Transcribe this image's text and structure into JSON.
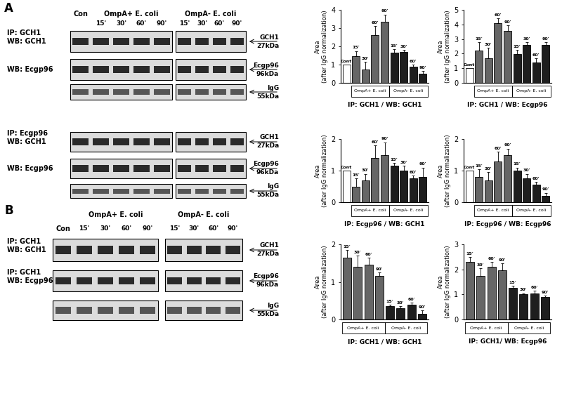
{
  "panels": [
    "A",
    "B"
  ],
  "blots": [
    {
      "panel": "A",
      "control": "Con",
      "groups": [
        "OmpA+ E. coli",
        "OmpA- E. coli"
      ],
      "lanes": [
        "15'",
        "30'",
        "60'",
        "90'"
      ],
      "rows": [
        {
          "left": [
            "IP: GCH1",
            "WB: GCH1"
          ],
          "band": "GCH1",
          "size": "27kDa"
        },
        {
          "left": [
            "WB: Ecgp96"
          ],
          "band": "Ecgp96",
          "size": "96kDa"
        },
        {
          "left": [],
          "band": "IgG",
          "size": "55kDa"
        }
      ]
    },
    {
      "rows": [
        {
          "left": [
            "IP: Ecgp96",
            "WB: GCH1"
          ],
          "band": "GCH1",
          "size": "27kDa"
        },
        {
          "left": [
            "WB: Ecgp96"
          ],
          "band": "Ecgp96",
          "size": "96kDa"
        },
        {
          "left": [],
          "band": "IgG",
          "size": "55kDa"
        }
      ]
    },
    {
      "panel": "B",
      "control": "Con",
      "groups": [
        "OmpA+ E. coli",
        "OmpA- E. coli"
      ],
      "lanes": [
        "15'",
        "30'",
        "60'",
        "90'"
      ],
      "rows": [
        {
          "left": [
            "IP: GCH1",
            "WB: GCH1"
          ],
          "band": "GCH1",
          "size": "27kDa"
        },
        {
          "left": [
            "IP: GCH1",
            "WB: Ecgp96"
          ],
          "band": "Ecgp96",
          "size": "96kDa"
        },
        {
          "left": [],
          "band": "IgG",
          "size": "55kDa"
        }
      ]
    }
  ],
  "chart_data": [
    {
      "type": "bar",
      "xlabel": "IP: GCH1 / WB: GCH1",
      "ylabel": "Area\n(after IgG normalization)",
      "ylim": [
        0,
        4
      ],
      "yticks": [
        0,
        1,
        2,
        3,
        4
      ],
      "tick_labels": "y",
      "series": [
        {
          "categories": [
            "Cont"
          ],
          "values": [
            1.0
          ],
          "color": "#ffffff"
        },
        {
          "name": "OmpA+ E. coli",
          "categories": [
            "15'",
            "30'",
            "60'",
            "90'"
          ],
          "values": [
            1.45,
            0.75,
            2.6,
            3.35
          ],
          "errors": [
            0.3,
            0.4,
            0.5,
            0.4
          ],
          "color": "#666666"
        },
        {
          "name": "OmpA- E. coli",
          "categories": [
            "15'",
            "30'",
            "60'",
            "90'"
          ],
          "values": [
            1.65,
            1.7,
            0.9,
            0.5
          ],
          "errors": [
            0.2,
            0.1,
            0.1,
            0.15
          ],
          "color": "#1e1e1e"
        }
      ]
    },
    {
      "type": "bar",
      "xlabel": "IP: GCH1 / WB: Ecgp96",
      "ylabel": "Area\n(after IgG normalization)",
      "ylim": [
        0,
        5
      ],
      "yticks": [
        0,
        1,
        2,
        3,
        4,
        5
      ],
      "tick_labels": "y",
      "series": [
        {
          "categories": [
            "Cont"
          ],
          "values": [
            1.0
          ],
          "color": "#ffffff"
        },
        {
          "name": "OmpA+ E. coli",
          "categories": [
            "15'",
            "30'",
            "60'",
            "90'"
          ],
          "values": [
            2.2,
            1.7,
            4.1,
            3.55
          ],
          "errors": [
            0.6,
            0.7,
            0.3,
            0.4
          ],
          "color": "#666666"
        },
        {
          "name": "OmpA- E. coli",
          "categories": [
            "15'",
            "30'",
            "60'",
            "90'"
          ],
          "values": [
            1.95,
            2.6,
            1.4,
            2.6
          ],
          "errors": [
            0.3,
            0.2,
            0.3,
            0.2
          ],
          "color": "#1e1e1e"
        }
      ]
    },
    {
      "type": "bar",
      "xlabel": "IP: Ecgp96 / WB: GCH1",
      "ylabel": "Area\n(after IgG normalization)",
      "ylim": [
        0,
        2
      ],
      "yticks": [
        0,
        1,
        2
      ],
      "tick_labels": "y",
      "series": [
        {
          "categories": [
            "Cont"
          ],
          "values": [
            1.0
          ],
          "color": "#ffffff"
        },
        {
          "name": "OmpA+ E. coli",
          "categories": [
            "15'",
            "30'",
            "60'",
            "90'"
          ],
          "values": [
            0.5,
            0.7,
            1.4,
            1.5
          ],
          "errors": [
            0.25,
            0.2,
            0.4,
            0.4
          ],
          "color": "#666666"
        },
        {
          "name": "OmpA- E. coli",
          "categories": [
            "15'",
            "30'",
            "60'",
            "90'"
          ],
          "values": [
            1.15,
            1.0,
            0.75,
            0.8
          ],
          "errors": [
            0.1,
            0.15,
            0.1,
            0.3
          ],
          "color": "#1e1e1e"
        }
      ]
    },
    {
      "type": "bar",
      "xlabel": "IP: Ecgp96 / WB: Ecgp96",
      "ylabel": "Area\n(after IgG normalization)",
      "ylim": [
        0,
        2
      ],
      "yticks": [
        0,
        1,
        2
      ],
      "tick_labels": "y",
      "series": [
        {
          "categories": [
            "Cont"
          ],
          "values": [
            1.0
          ],
          "color": "#ffffff"
        },
        {
          "name": "OmpA+ E. coli",
          "categories": [
            "15'",
            "30'",
            "60'",
            "90'"
          ],
          "values": [
            0.8,
            0.7,
            1.3,
            1.5
          ],
          "errors": [
            0.25,
            0.25,
            0.3,
            0.2
          ],
          "color": "#666666"
        },
        {
          "name": "OmpA- E. coli",
          "categories": [
            "15'",
            "30'",
            "60'",
            "90'"
          ],
          "values": [
            1.0,
            0.75,
            0.55,
            0.2
          ],
          "errors": [
            0.1,
            0.15,
            0.1,
            0.1
          ],
          "color": "#1e1e1e"
        }
      ]
    },
    {
      "type": "bar",
      "xlabel": "IP: GCH1 / WB: GCH1",
      "ylabel": "Area\n(after IgG normalization)",
      "ylim": [
        0,
        2
      ],
      "yticks": [
        0,
        1,
        2
      ],
      "tick_labels": "y",
      "series": [
        {
          "name": "OmpA+ E. coli",
          "categories": [
            "15'",
            "30'",
            "60'",
            "90'"
          ],
          "values": [
            1.65,
            1.4,
            1.45,
            1.15
          ],
          "errors": [
            0.2,
            0.3,
            0.2,
            0.1
          ],
          "color": "#666666"
        },
        {
          "name": "OmpA- E. coli",
          "categories": [
            "15'",
            "30'",
            "60'",
            "90'"
          ],
          "values": [
            0.35,
            0.3,
            0.4,
            0.15
          ],
          "errors": [
            0.05,
            0.05,
            0.05,
            0.1
          ],
          "color": "#1e1e1e"
        }
      ]
    },
    {
      "type": "bar",
      "xlabel": "IP: GCH1/ WB: Ecgp96",
      "ylabel": "Area\n(after IgG normalization)",
      "ylim": [
        0,
        3
      ],
      "yticks": [
        0,
        1,
        2,
        3
      ],
      "tick_labels": "y",
      "series": [
        {
          "name": "OmpA+ E. coli",
          "categories": [
            "15'",
            "30'",
            "60'",
            "90'"
          ],
          "values": [
            2.3,
            1.75,
            2.1,
            1.95
          ],
          "errors": [
            0.2,
            0.3,
            0.2,
            0.3
          ],
          "color": "#666666"
        },
        {
          "name": "OmpA- E. coli",
          "categories": [
            "15'",
            "30'",
            "60'",
            "90'"
          ],
          "values": [
            1.25,
            1.0,
            1.05,
            0.9
          ],
          "errors": [
            0.1,
            0.05,
            0.1,
            0.05
          ],
          "color": "#1e1e1e"
        }
      ]
    }
  ]
}
